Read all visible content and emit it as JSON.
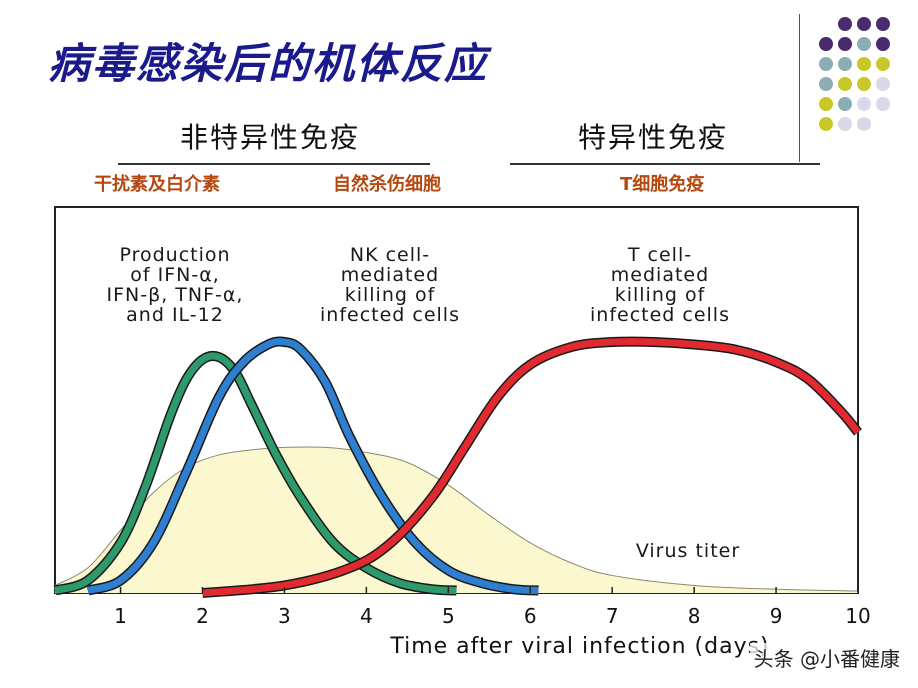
{
  "page": {
    "title": "病毒感染后的机体反应",
    "nonspecific": {
      "heading": "非特异性免疫",
      "sub1": "干扰素及白介素",
      "sub2": "自然杀伤细胞"
    },
    "specific": {
      "heading": "特异性免疫",
      "sub1": "T细胞免疫"
    },
    "watermark": "头条 @小番健康"
  },
  "colors": {
    "title": "#1a1a8c",
    "subheading": "#b5480f",
    "ifn": "#2e9a6c",
    "nk": "#2e7fd0",
    "tcell": "#e02a30",
    "virus_fill": "#fbf7cf",
    "virus_stroke": "#8a8a70",
    "dots": [
      "#4a2a6e",
      "#8aaeb4",
      "#c8c828",
      "#d8d8e8"
    ]
  },
  "chart_data": {
    "type": "line",
    "xlabel": "Time after viral infection (days)",
    "xlim": [
      0.2,
      10
    ],
    "ylim": [
      0,
      1
    ],
    "x_ticks": [
      "1",
      "2",
      "3",
      "4",
      "5",
      "6",
      "7",
      "8",
      "9",
      "10"
    ],
    "annotations": [
      {
        "series": "ifn",
        "lines": [
          "Production",
          "of IFN-α,",
          "IFN-β, TNF-α,",
          "and IL-12"
        ]
      },
      {
        "series": "nk",
        "lines": [
          "NK cell-",
          "mediated",
          "killing of",
          "infected cells"
        ]
      },
      {
        "series": "tcell",
        "lines": [
          "T cell-",
          "mediated",
          "killing of",
          "infected cells"
        ]
      },
      {
        "series": "virus",
        "lines": [
          "Virus titer"
        ]
      }
    ],
    "series": [
      {
        "key": "ifn",
        "color_key": "ifn",
        "x": [
          0.2,
          0.6,
          1.0,
          1.3,
          1.6,
          1.8,
          2.0,
          2.2,
          2.4,
          2.6,
          2.9,
          3.2,
          3.6,
          4.0,
          4.4,
          4.8,
          5.1
        ],
        "y": [
          0.01,
          0.05,
          0.2,
          0.42,
          0.7,
          0.85,
          0.93,
          0.94,
          0.88,
          0.75,
          0.55,
          0.38,
          0.2,
          0.1,
          0.04,
          0.015,
          0.01
        ]
      },
      {
        "key": "nk",
        "color_key": "nk",
        "x": [
          0.6,
          1.0,
          1.4,
          1.8,
          2.2,
          2.5,
          2.8,
          3.0,
          3.2,
          3.5,
          3.8,
          4.2,
          4.6,
          5.0,
          5.4,
          5.8,
          6.1
        ],
        "y": [
          0.01,
          0.05,
          0.2,
          0.48,
          0.78,
          0.92,
          0.99,
          1.0,
          0.97,
          0.84,
          0.62,
          0.38,
          0.2,
          0.09,
          0.04,
          0.015,
          0.01
        ]
      },
      {
        "key": "tcell",
        "color_key": "tcell",
        "x": [
          2.0,
          3.0,
          3.8,
          4.3,
          4.8,
          5.2,
          5.6,
          6.0,
          6.5,
          7.0,
          7.5,
          8.0,
          8.5,
          9.0,
          9.4,
          9.8,
          10.0
        ],
        "y": [
          0.0,
          0.03,
          0.1,
          0.2,
          0.38,
          0.58,
          0.78,
          0.91,
          0.98,
          1.0,
          1.0,
          0.99,
          0.97,
          0.92,
          0.85,
          0.72,
          0.64
        ]
      },
      {
        "key": "virus",
        "color_key": "virus_fill",
        "area": true,
        "x": [
          0.2,
          0.6,
          1.0,
          1.4,
          1.8,
          2.2,
          2.6,
          3.0,
          3.5,
          4.0,
          4.5,
          5.0,
          5.5,
          6.0,
          6.5,
          7.0,
          8.0,
          9.0,
          10.0
        ],
        "y": [
          0.03,
          0.1,
          0.25,
          0.4,
          0.5,
          0.55,
          0.57,
          0.58,
          0.58,
          0.56,
          0.52,
          0.43,
          0.31,
          0.2,
          0.12,
          0.07,
          0.03,
          0.015,
          0.008
        ]
      }
    ]
  }
}
